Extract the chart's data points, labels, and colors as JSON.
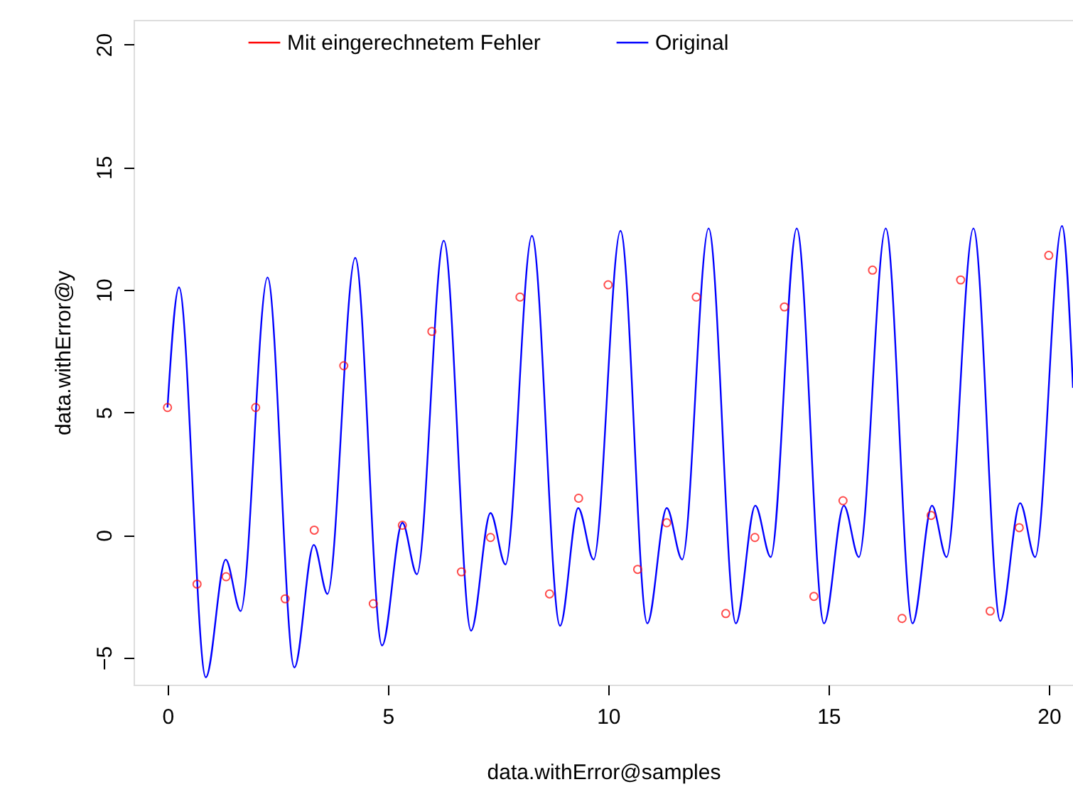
{
  "chart_data": {
    "type": "scatter",
    "xlabel": "data.withError@samples",
    "ylabel": "data.withError@y",
    "xlim": [
      -0.77,
      20.55
    ],
    "ylim": [
      -6.1,
      21
    ],
    "xticks": [
      0,
      5,
      10,
      15,
      20
    ],
    "yticks": [
      -5,
      0,
      5,
      10,
      15,
      20
    ],
    "grid": false,
    "legend": "top",
    "series": [
      {
        "name": "Mit eingerechnetem Fehler",
        "marker": "circle",
        "color": "#ff0000",
        "x": [
          0,
          0.67,
          1.33,
          2,
          2.67,
          3.33,
          4,
          4.67,
          5.33,
          6,
          6.67,
          7.33,
          8,
          8.67,
          9.33,
          10,
          10.67,
          11.33,
          12,
          12.67,
          13.33,
          14,
          14.67,
          15.33,
          16,
          16.67,
          17.33,
          18,
          18.67,
          19.33,
          20
        ],
        "values": [
          5.2,
          -2.0,
          -1.7,
          5.2,
          -2.6,
          0.2,
          6.9,
          -2.8,
          0.4,
          8.3,
          -1.5,
          -0.1,
          9.7,
          -2.4,
          1.5,
          10.2,
          -1.4,
          0.5,
          9.7,
          -3.2,
          -0.1,
          9.3,
          -2.5,
          1.4,
          10.8,
          -3.4,
          0.8,
          10.4,
          -3.1,
          0.3,
          11.4
        ]
      },
      {
        "name": "Original",
        "type": "line",
        "color": "#0000ff",
        "x": [
          0,
          0.26,
          0.87,
          1.32,
          1.66,
          2.27,
          2.88,
          3.32,
          3.63,
          4.26,
          4.87,
          5.33,
          5.66,
          6.27,
          6.89,
          7.33,
          7.67,
          8.27,
          8.91,
          9.32,
          9.67,
          10.28,
          10.89,
          11.33,
          11.68,
          12.28,
          12.9,
          13.34,
          13.69,
          14.28,
          14.9,
          15.35,
          15.69,
          16.3,
          16.91,
          17.35,
          17.68,
          18.29,
          18.9,
          19.35,
          19.69,
          20.3,
          20.55
        ],
        "values": [
          5.2,
          10.1,
          -5.8,
          -1.0,
          -3.1,
          10.5,
          -5.4,
          -0.4,
          -2.4,
          11.3,
          -4.5,
          0.5,
          -1.6,
          12.0,
          -3.9,
          0.9,
          -1.2,
          12.2,
          -3.7,
          1.1,
          -1.0,
          12.4,
          -3.6,
          1.1,
          -1.0,
          12.5,
          -3.6,
          1.2,
          -0.9,
          12.5,
          -3.6,
          1.2,
          -0.9,
          12.5,
          -3.6,
          1.2,
          -0.9,
          12.5,
          -3.5,
          1.3,
          -0.9,
          12.6,
          6.0
        ]
      }
    ]
  }
}
